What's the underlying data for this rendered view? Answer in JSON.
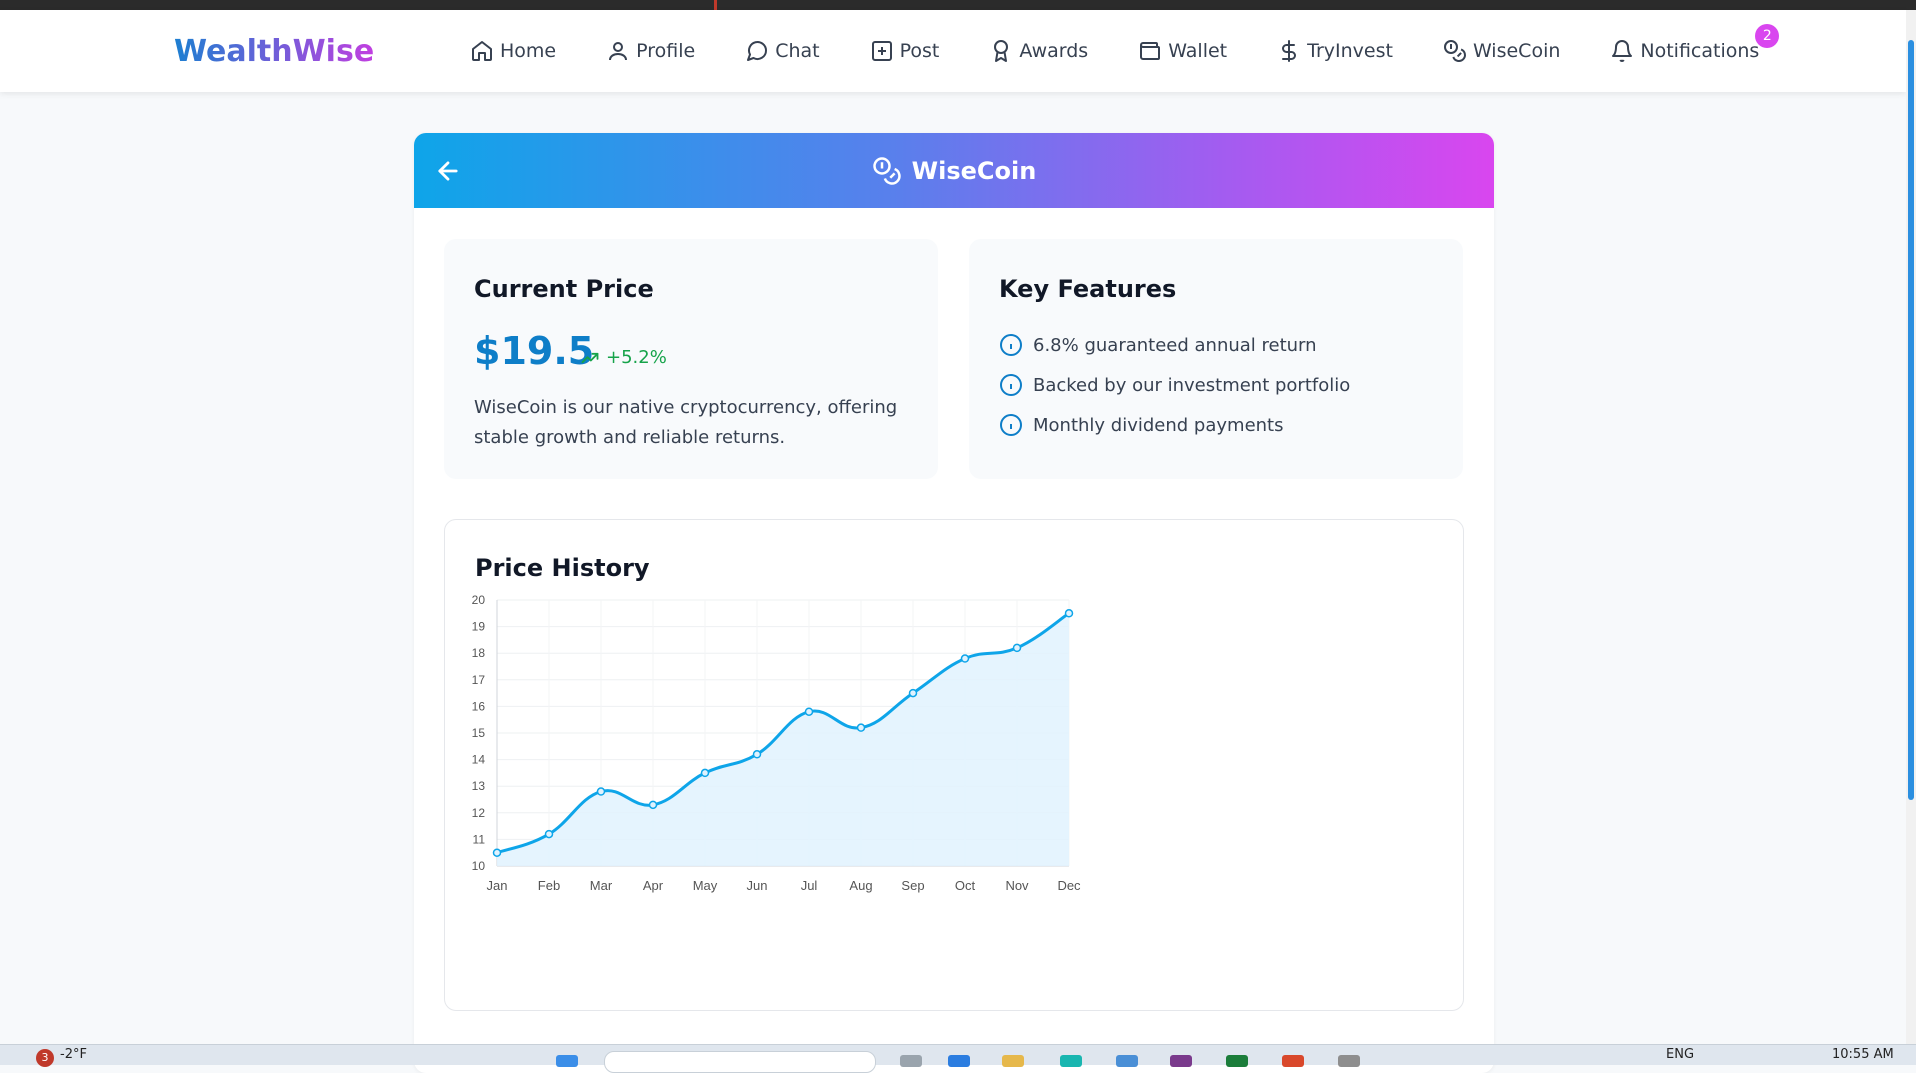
{
  "app": {
    "brand": "WealthWise"
  },
  "nav": {
    "items": [
      {
        "label": "Home",
        "icon": "home-icon"
      },
      {
        "label": "Profile",
        "icon": "user-icon"
      },
      {
        "label": "Chat",
        "icon": "chat-bubble-icon"
      },
      {
        "label": "Post",
        "icon": "plus-square-icon"
      },
      {
        "label": "Awards",
        "icon": "award-icon"
      },
      {
        "label": "Wallet",
        "icon": "wallet-icon"
      },
      {
        "label": "TryInvest",
        "icon": "dollar-icon"
      },
      {
        "label": "WiseCoin",
        "icon": "coins-icon"
      },
      {
        "label": "Notifications",
        "icon": "bell-icon",
        "badge": "2"
      }
    ]
  },
  "page": {
    "title": "WiseCoin",
    "header_gradient": [
      "#0ea5e9",
      "#d946ef"
    ]
  },
  "price_panel": {
    "title": "Current Price",
    "price": "$19.5",
    "change": "+5.2%",
    "change_color": "#16a34a",
    "description": "WiseCoin is our native cryptocurrency, offering stable growth and reliable returns."
  },
  "features_panel": {
    "title": "Key Features",
    "items": [
      "6.8% guaranteed annual return",
      "Backed by our investment portfolio",
      "Monthly dividend payments"
    ]
  },
  "chart_data": {
    "type": "area",
    "title": "Price History",
    "categories": [
      "Jan",
      "Feb",
      "Mar",
      "Apr",
      "May",
      "Jun",
      "Jul",
      "Aug",
      "Sep",
      "Oct",
      "Nov",
      "Dec"
    ],
    "values": [
      10.5,
      11.2,
      12.8,
      12.3,
      13.5,
      14.2,
      15.8,
      15.2,
      16.5,
      17.8,
      18.2,
      19.5
    ],
    "ylim": [
      10,
      20
    ],
    "yticks": [
      10,
      11,
      12,
      13,
      14,
      15,
      16,
      17,
      18,
      19,
      20
    ],
    "xlabel": "",
    "ylabel": "",
    "grid": true,
    "line_color": "#0ea5e9",
    "fill_color": "#e0f2fe"
  },
  "taskbar": {
    "weather_badge": "3",
    "temperature": "-2°F",
    "language": "ENG",
    "time": "10:55 AM"
  }
}
